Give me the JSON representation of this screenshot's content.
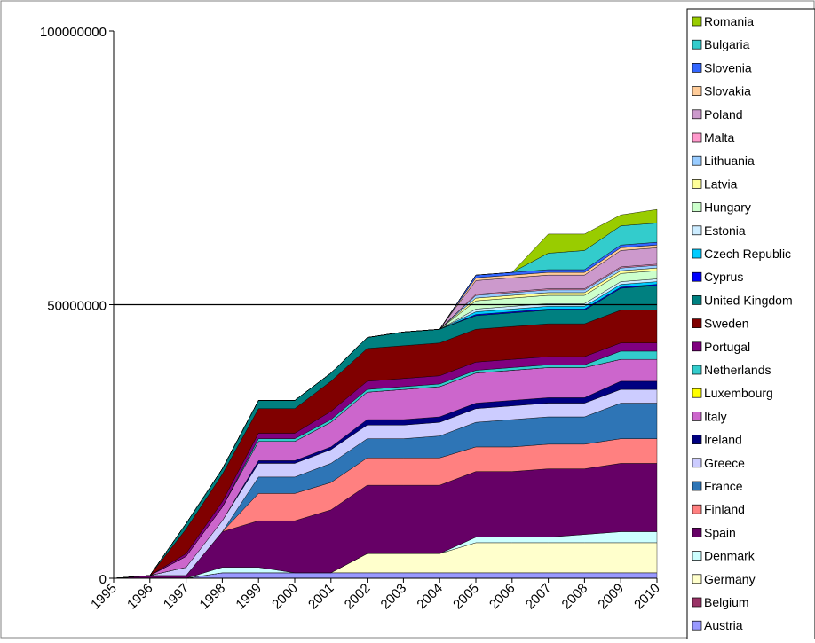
{
  "chart_data": {
    "type": "area",
    "stacked": true,
    "title": "",
    "xlabel": "",
    "ylabel": "",
    "ylim": [
      0,
      100000000
    ],
    "y_ticks": [
      "0",
      "50000000",
      "100000000"
    ],
    "grid": "major y gridline at 50000000 only",
    "legend_position": "right",
    "categories": [
      "1995",
      "1996",
      "1997",
      "1998",
      "1999",
      "2000",
      "2001",
      "2002",
      "2003",
      "2004",
      "2005",
      "2006",
      "2007",
      "2008",
      "2009",
      "2010"
    ],
    "series": [
      {
        "name": "Austria",
        "color": "#9999ff",
        "values": [
          0,
          0,
          0,
          1000000,
          1000000,
          1000000,
          1000000,
          1000000,
          1000000,
          1000000,
          1000000,
          1000000,
          1000000,
          1000000,
          1000000,
          1000000
        ]
      },
      {
        "name": "Belgium",
        "color": "#993366",
        "values": [
          0,
          0,
          0,
          0,
          0,
          0,
          0,
          0,
          0,
          0,
          0,
          0,
          0,
          0,
          0,
          0
        ]
      },
      {
        "name": "Germany",
        "color": "#ffffcc",
        "values": [
          0,
          0,
          0,
          0,
          0,
          0,
          0,
          3500000,
          3500000,
          3500000,
          5500000,
          5500000,
          5500000,
          5500000,
          5500000,
          5500000
        ]
      },
      {
        "name": "Denmark",
        "color": "#ccffff",
        "values": [
          0,
          0,
          0,
          1000000,
          1000000,
          0,
          0,
          0,
          0,
          0,
          1000000,
          1000000,
          1000000,
          1500000,
          2000000,
          2000000
        ]
      },
      {
        "name": "Spain",
        "color": "#660066",
        "values": [
          0,
          500000,
          500000,
          6500000,
          8500000,
          9500000,
          11500000,
          12500000,
          12500000,
          12500000,
          12000000,
          12000000,
          12500000,
          12000000,
          12500000,
          12500000
        ]
      },
      {
        "name": "Finland",
        "color": "#ff8080",
        "values": [
          0,
          0,
          0,
          0,
          5000000,
          5000000,
          5000000,
          5000000,
          5000000,
          5000000,
          4500000,
          4500000,
          4500000,
          4500000,
          4500000,
          4500000
        ]
      },
      {
        "name": "France",
        "color": "#2e75b6",
        "values": [
          0,
          0,
          0,
          0,
          3000000,
          3000000,
          3500000,
          3500000,
          3500000,
          4000000,
          4500000,
          5000000,
          5000000,
          5000000,
          6500000,
          6500000
        ]
      },
      {
        "name": "Greece",
        "color": "#ccccff",
        "values": [
          0,
          0,
          1500000,
          2000000,
          2500000,
          2500000,
          2500000,
          2500000,
          2500000,
          2500000,
          2500000,
          2500000,
          2500000,
          2500000,
          2500000,
          2500000
        ]
      },
      {
        "name": "Ireland",
        "color": "#000080",
        "values": [
          0,
          0,
          0,
          0,
          500000,
          500000,
          500000,
          1000000,
          1000000,
          1000000,
          1000000,
          1000000,
          1000000,
          1000000,
          1500000,
          1500000
        ]
      },
      {
        "name": "Italy",
        "color": "#cc66cc",
        "values": [
          0,
          0,
          2000000,
          2500000,
          3500000,
          3500000,
          4500000,
          5000000,
          5500000,
          5500000,
          5500000,
          5500000,
          5500000,
          5500000,
          4000000,
          4000000
        ]
      },
      {
        "name": "Luxembourg",
        "color": "#ffff00",
        "values": [
          0,
          0,
          0,
          0,
          0,
          0,
          0,
          0,
          0,
          0,
          0,
          0,
          0,
          0,
          0,
          0
        ]
      },
      {
        "name": "Netherlands",
        "color": "#33cccc",
        "values": [
          0,
          0,
          0,
          0,
          500000,
          500000,
          500000,
          500000,
          500000,
          500000,
          500000,
          500000,
          500000,
          500000,
          1500000,
          1500000
        ]
      },
      {
        "name": "Portugal",
        "color": "#800080",
        "values": [
          0,
          0,
          500000,
          1000000,
          1000000,
          1000000,
          1500000,
          1500000,
          1500000,
          1500000,
          1500000,
          1500000,
          1500000,
          1500000,
          1500000,
          1500000
        ]
      },
      {
        "name": "Sweden",
        "color": "#800000",
        "values": [
          0,
          0,
          4500000,
          5000000,
          4500000,
          4500000,
          5500000,
          6000000,
          6000000,
          6000000,
          6000000,
          6000000,
          6000000,
          6000000,
          6000000,
          6000000
        ]
      },
      {
        "name": "United Kingdom",
        "color": "#008080",
        "values": [
          0,
          0,
          1000000,
          1000000,
          1500000,
          1500000,
          1500000,
          2000000,
          2500000,
          2500000,
          2500000,
          2500000,
          2500000,
          2500000,
          4000000,
          4500000
        ]
      },
      {
        "name": "Cyprus",
        "color": "#0000ff",
        "values": [
          0,
          0,
          0,
          0,
          0,
          0,
          0,
          0,
          0,
          0,
          200000,
          200000,
          200000,
          200000,
          200000,
          200000
        ]
      },
      {
        "name": "Czech Republic",
        "color": "#00ccff",
        "values": [
          0,
          0,
          0,
          0,
          0,
          0,
          0,
          0,
          0,
          0,
          500000,
          500000,
          500000,
          500000,
          500000,
          500000
        ]
      },
      {
        "name": "Estonia",
        "color": "#ccecff",
        "values": [
          0,
          0,
          0,
          0,
          0,
          0,
          0,
          0,
          0,
          0,
          500000,
          500000,
          500000,
          500000,
          500000,
          500000
        ]
      },
      {
        "name": "Hungary",
        "color": "#ccffcc",
        "values": [
          0,
          0,
          0,
          0,
          0,
          0,
          0,
          0,
          0,
          0,
          1500000,
          1500000,
          1500000,
          1500000,
          1500000,
          1500000
        ]
      },
      {
        "name": "Latvia",
        "color": "#ffff99",
        "values": [
          0,
          0,
          0,
          0,
          0,
          0,
          0,
          0,
          0,
          0,
          500000,
          500000,
          500000,
          500000,
          500000,
          500000
        ]
      },
      {
        "name": "Lithuania",
        "color": "#99ccff",
        "values": [
          0,
          0,
          0,
          0,
          0,
          0,
          0,
          0,
          0,
          0,
          500000,
          500000,
          500000,
          500000,
          500000,
          500000
        ]
      },
      {
        "name": "Malta",
        "color": "#ff99cc",
        "values": [
          0,
          0,
          0,
          0,
          0,
          0,
          0,
          0,
          0,
          0,
          200000,
          200000,
          200000,
          200000,
          200000,
          200000
        ]
      },
      {
        "name": "Poland",
        "color": "#cc99cc",
        "values": [
          0,
          0,
          0,
          0,
          0,
          0,
          0,
          0,
          0,
          0,
          2500000,
          2500000,
          2500000,
          2500000,
          3000000,
          3000000
        ]
      },
      {
        "name": "Slovakia",
        "color": "#ffcc99",
        "values": [
          0,
          0,
          0,
          0,
          0,
          0,
          0,
          0,
          0,
          0,
          500000,
          500000,
          500000,
          500000,
          500000,
          500000
        ]
      },
      {
        "name": "Slovenia",
        "color": "#3366ff",
        "values": [
          0,
          0,
          0,
          0,
          0,
          0,
          0,
          0,
          0,
          0,
          500000,
          500000,
          500000,
          500000,
          500000,
          500000
        ]
      },
      {
        "name": "Bulgaria",
        "color": "#33cccc",
        "values": [
          0,
          0,
          0,
          0,
          0,
          0,
          0,
          0,
          0,
          0,
          0,
          0,
          3000000,
          3500000,
          3500000,
          3500000
        ]
      },
      {
        "name": "Romania",
        "color": "#99cc00",
        "values": [
          0,
          0,
          0,
          0,
          0,
          0,
          0,
          0,
          0,
          0,
          0,
          0,
          3500000,
          3000000,
          2000000,
          2500000
        ]
      }
    ]
  }
}
